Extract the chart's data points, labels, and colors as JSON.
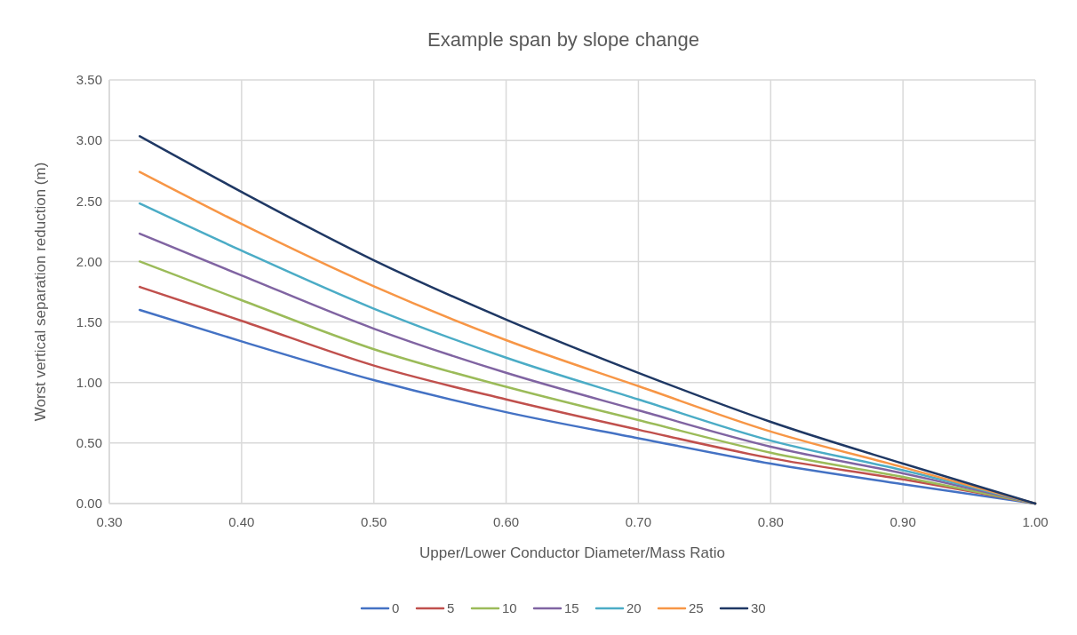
{
  "chart_data": {
    "type": "line",
    "title": "Example span by slope change",
    "xlabel": "Upper/Lower Conductor Diameter/Mass Ratio",
    "ylabel": "Worst vertical separation reduction (m)",
    "x": [
      0.323,
      0.4,
      0.5,
      0.6,
      0.7,
      0.8,
      0.9,
      1.0
    ],
    "series": [
      {
        "name": "0",
        "color": "#4472c4",
        "values": [
          1.6,
          1.34,
          1.02,
          0.755,
          0.54,
          0.33,
          0.16,
          0
        ]
      },
      {
        "name": "5",
        "color": "#c0504d",
        "values": [
          1.79,
          1.51,
          1.14,
          0.86,
          0.61,
          0.375,
          0.2,
          0
        ]
      },
      {
        "name": "10",
        "color": "#9bbb59",
        "values": [
          2.0,
          1.68,
          1.275,
          0.965,
          0.69,
          0.42,
          0.22,
          0
        ]
      },
      {
        "name": "15",
        "color": "#8064a2",
        "values": [
          2.23,
          1.885,
          1.445,
          1.08,
          0.77,
          0.47,
          0.25,
          0
        ]
      },
      {
        "name": "20",
        "color": "#4bacc6",
        "values": [
          2.48,
          2.09,
          1.61,
          1.205,
          0.86,
          0.52,
          0.275,
          0
        ]
      },
      {
        "name": "25",
        "color": "#f79646",
        "values": [
          2.74,
          2.31,
          1.795,
          1.35,
          0.97,
          0.595,
          0.3,
          0
        ]
      },
      {
        "name": "30",
        "color": "#1f3864",
        "values": [
          3.035,
          2.575,
          2.01,
          1.52,
          1.08,
          0.675,
          0.33,
          0
        ]
      }
    ],
    "xlim": [
      0.3,
      1.0
    ],
    "xticks": [
      {
        "value": 0.3,
        "label": "0.30"
      },
      {
        "value": 0.4,
        "label": "0.40"
      },
      {
        "value": 0.5,
        "label": "0.50"
      },
      {
        "value": 0.6,
        "label": "0.60"
      },
      {
        "value": 0.7,
        "label": "0.70"
      },
      {
        "value": 0.8,
        "label": "0.80"
      },
      {
        "value": 0.9,
        "label": "0.90"
      },
      {
        "value": 1.0,
        "label": "1.00"
      }
    ],
    "ylim": [
      0,
      3.5
    ],
    "yticks": [
      {
        "value": 0,
        "label": "0.00"
      },
      {
        "value": 0.5,
        "label": "0.50"
      },
      {
        "value": 1,
        "label": "1.00"
      },
      {
        "value": 1.5,
        "label": "1.50"
      },
      {
        "value": 2,
        "label": "2.00"
      },
      {
        "value": 2.5,
        "label": "2.50"
      },
      {
        "value": 3,
        "label": "3.00"
      },
      {
        "value": 3.5,
        "label": "3.50"
      }
    ],
    "grid": true,
    "legend": "bottom",
    "marker": "none",
    "line_style": "solid"
  }
}
